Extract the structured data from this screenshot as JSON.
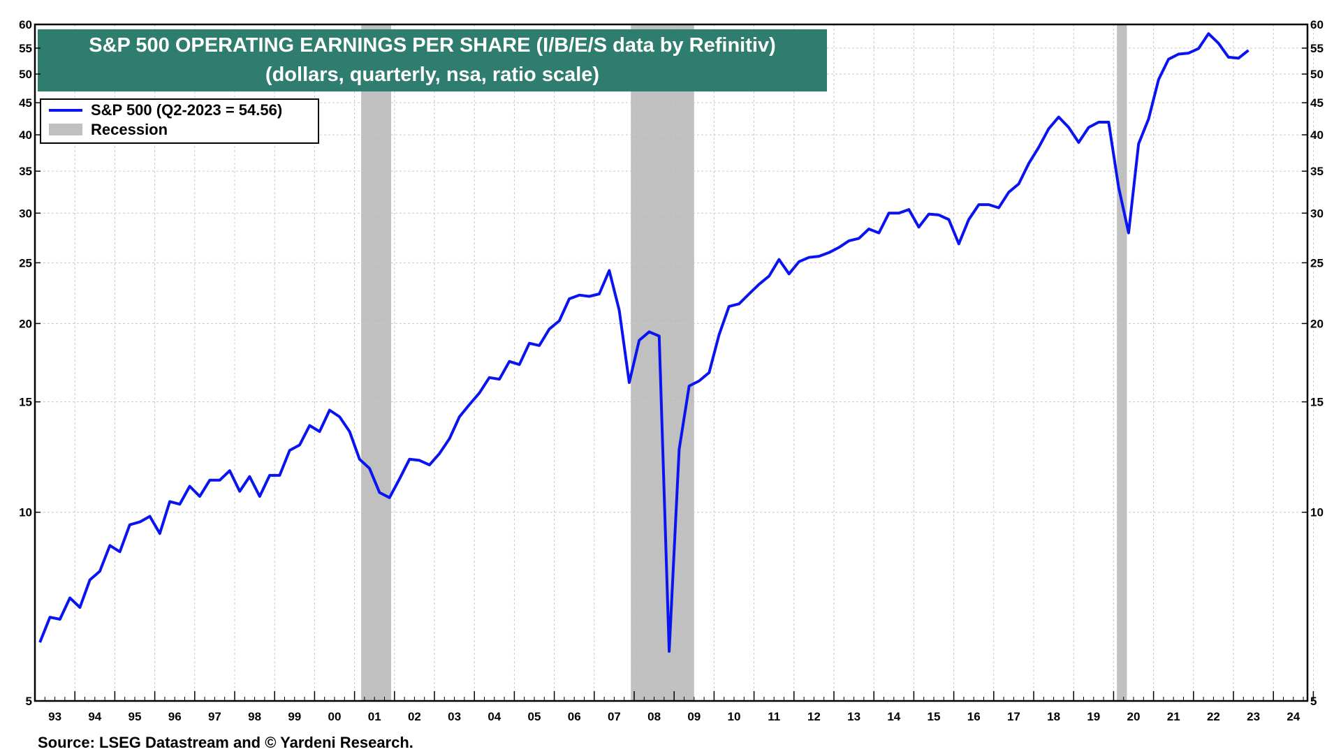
{
  "chart_data": {
    "type": "line",
    "title": "S&P 500 OPERATING EARNINGS PER SHARE (I/B/E/S data by Refinitiv)",
    "subtitle": "(dollars, quarterly, nsa, ratio scale)",
    "source": "Source: LSEG Datastream and © Yardeni Research.",
    "y_scale": "log",
    "ylim": [
      5,
      60
    ],
    "y_ticks": [
      5,
      10,
      15,
      20,
      25,
      30,
      35,
      40,
      45,
      50,
      55,
      60
    ],
    "x_range": [
      1993,
      2025
    ],
    "x_tick_labels": [
      "93",
      "94",
      "95",
      "96",
      "97",
      "98",
      "99",
      "00",
      "01",
      "02",
      "03",
      "04",
      "05",
      "06",
      "07",
      "08",
      "09",
      "10",
      "11",
      "12",
      "13",
      "14",
      "15",
      "16",
      "17",
      "18",
      "19",
      "20",
      "21",
      "22",
      "23",
      "24"
    ],
    "grid": true,
    "legend_position": "top-left",
    "colors": {
      "line": "#0a14f0",
      "recession": "#c0c0c0",
      "title_bg": "#2e7d6e",
      "grid": "#c8c8c8"
    },
    "legend": [
      {
        "label": "S&P 500 (Q2-2023 = 54.56)",
        "kind": "line",
        "color": "#0a14f0"
      },
      {
        "label": "Recession",
        "kind": "box",
        "color": "#c0c0c0"
      }
    ],
    "recessions": [
      {
        "start": "2001-03",
        "end": "2001-11"
      },
      {
        "start": "2007-12",
        "end": "2009-06"
      },
      {
        "start": "2020-02",
        "end": "2020-04"
      }
    ],
    "series": [
      {
        "name": "S&P 500 (Q2-2023 = 54.56)",
        "start": "1993-Q1",
        "frequency": "quarterly",
        "values": [
          6.2,
          6.8,
          6.75,
          7.3,
          7.05,
          7.8,
          8.05,
          8.85,
          8.65,
          9.55,
          9.65,
          9.85,
          9.25,
          10.4,
          10.3,
          11.0,
          10.6,
          11.25,
          11.25,
          11.65,
          10.8,
          11.4,
          10.6,
          11.45,
          11.45,
          12.55,
          12.8,
          13.75,
          13.45,
          14.55,
          14.2,
          13.45,
          12.15,
          11.75,
          10.75,
          10.55,
          11.3,
          12.15,
          12.1,
          11.9,
          12.4,
          13.1,
          14.2,
          14.85,
          15.5,
          16.4,
          16.3,
          17.4,
          17.2,
          18.6,
          18.45,
          19.6,
          20.2,
          21.9,
          22.2,
          22.1,
          22.3,
          24.3,
          21.0,
          16.1,
          18.8,
          19.4,
          19.1,
          6.0,
          12.6,
          15.9,
          16.2,
          16.7,
          19.2,
          21.3,
          21.5,
          22.3,
          23.1,
          23.8,
          25.3,
          24.0,
          25.1,
          25.5,
          25.6,
          25.95,
          26.45,
          27.1,
          27.35,
          28.3,
          27.9,
          30.0,
          30.0,
          30.4,
          28.5,
          29.9,
          29.8,
          29.3,
          26.8,
          29.3,
          30.95,
          30.95,
          30.6,
          32.4,
          33.4,
          36.0,
          38.2,
          40.9,
          42.7,
          41.1,
          38.9,
          41.1,
          41.9,
          41.9,
          33.0,
          27.9,
          38.7,
          42.4,
          49.0,
          52.8,
          53.8,
          54.0,
          54.9,
          58.0,
          56.0,
          53.2,
          53.0,
          54.56
        ]
      }
    ]
  }
}
